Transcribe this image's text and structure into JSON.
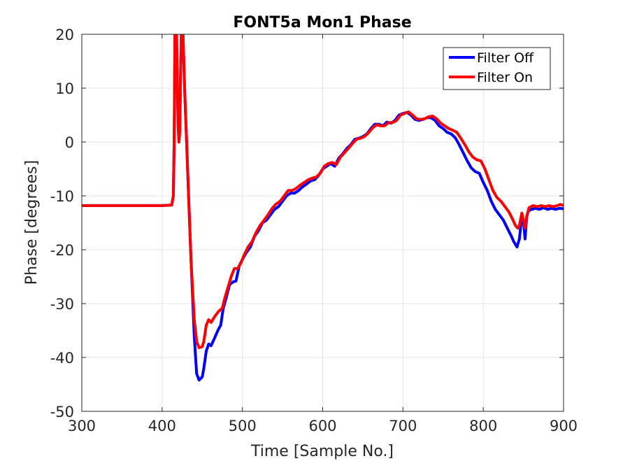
{
  "chart_data": {
    "type": "line",
    "title": "FONT5a Mon1 Phase",
    "xlabel": "Time [Sample No.]",
    "ylabel": "Phase [degrees]",
    "xlim": [
      300,
      900
    ],
    "ylim": [
      -50,
      20
    ],
    "xticks": [
      300,
      400,
      500,
      600,
      700,
      800,
      900
    ],
    "yticks": [
      -50,
      -40,
      -30,
      -20,
      -10,
      0,
      10,
      20
    ],
    "grid": true,
    "legend_position": "top-right",
    "series": [
      {
        "name": "Filter Off",
        "color": "#0000ff",
        "points": [
          [
            300,
            -11.8
          ],
          [
            350,
            -11.8
          ],
          [
            400,
            -11.8
          ],
          [
            412,
            -11.7
          ],
          [
            414,
            -10
          ],
          [
            415,
            0
          ],
          [
            416,
            20
          ],
          [
            417,
            26
          ],
          [
            418,
            20
          ],
          [
            419,
            10
          ],
          [
            420,
            3
          ],
          [
            421,
            0
          ],
          [
            422,
            2
          ],
          [
            423,
            12
          ],
          [
            424,
            20
          ],
          [
            425,
            26
          ],
          [
            426,
            20
          ],
          [
            428,
            10
          ],
          [
            430,
            2
          ],
          [
            433,
            -10
          ],
          [
            436,
            -22
          ],
          [
            440,
            -36
          ],
          [
            443,
            -43
          ],
          [
            446,
            -44.2
          ],
          [
            450,
            -43.6
          ],
          [
            452,
            -42
          ],
          [
            455,
            -38.8
          ],
          [
            458,
            -37.5
          ],
          [
            461,
            -37.8
          ],
          [
            465,
            -36.5
          ],
          [
            470,
            -34.8
          ],
          [
            473,
            -34
          ],
          [
            476,
            -31
          ],
          [
            480,
            -28.8
          ],
          [
            484,
            -26.5
          ],
          [
            488,
            -26
          ],
          [
            492,
            -25.8
          ],
          [
            496,
            -23
          ],
          [
            500,
            -21.8
          ],
          [
            505,
            -20.5
          ],
          [
            510,
            -19.5
          ],
          [
            515,
            -17.5
          ],
          [
            520,
            -16.5
          ],
          [
            525,
            -15
          ],
          [
            530,
            -14.5
          ],
          [
            535,
            -13.5
          ],
          [
            540,
            -12.5
          ],
          [
            545,
            -12
          ],
          [
            550,
            -11
          ],
          [
            555,
            -10
          ],
          [
            560,
            -9.5
          ],
          [
            565,
            -9.5
          ],
          [
            570,
            -9
          ],
          [
            575,
            -8.3
          ],
          [
            580,
            -7.8
          ],
          [
            585,
            -7.2
          ],
          [
            590,
            -7
          ],
          [
            595,
            -6.2
          ],
          [
            600,
            -5
          ],
          [
            605,
            -4.5
          ],
          [
            610,
            -4
          ],
          [
            615,
            -4.5
          ],
          [
            620,
            -3
          ],
          [
            625,
            -2.2
          ],
          [
            630,
            -1.2
          ],
          [
            635,
            -0.5
          ],
          [
            640,
            0.5
          ],
          [
            645,
            0.7
          ],
          [
            650,
            1
          ],
          [
            655,
            1.5
          ],
          [
            660,
            2.5
          ],
          [
            665,
            3.3
          ],
          [
            670,
            3.3
          ],
          [
            675,
            3
          ],
          [
            680,
            3.7
          ],
          [
            685,
            3.5
          ],
          [
            690,
            4
          ],
          [
            695,
            5
          ],
          [
            700,
            5.3
          ],
          [
            705,
            5.5
          ],
          [
            710,
            5
          ],
          [
            715,
            4.2
          ],
          [
            720,
            4
          ],
          [
            725,
            4.2
          ],
          [
            730,
            4.5
          ],
          [
            735,
            4.5
          ],
          [
            740,
            4
          ],
          [
            745,
            3
          ],
          [
            750,
            2.5
          ],
          [
            755,
            1.8
          ],
          [
            760,
            1.5
          ],
          [
            765,
            0.8
          ],
          [
            770,
            -0.5
          ],
          [
            775,
            -2
          ],
          [
            780,
            -3.5
          ],
          [
            785,
            -4.8
          ],
          [
            790,
            -5.5
          ],
          [
            795,
            -5.8
          ],
          [
            800,
            -7.5
          ],
          [
            805,
            -9
          ],
          [
            810,
            -11
          ],
          [
            815,
            -12.5
          ],
          [
            820,
            -13.5
          ],
          [
            825,
            -14.5
          ],
          [
            830,
            -16
          ],
          [
            835,
            -17.5
          ],
          [
            838,
            -18.5
          ],
          [
            842,
            -19.5
          ],
          [
            845,
            -18
          ],
          [
            848,
            -13.8
          ],
          [
            850,
            -14.5
          ],
          [
            852,
            -18
          ],
          [
            854,
            -14
          ],
          [
            856,
            -12.8
          ],
          [
            860,
            -12.5
          ],
          [
            865,
            -12.3
          ],
          [
            870,
            -12.5
          ],
          [
            875,
            -12.2
          ],
          [
            880,
            -12.5
          ],
          [
            885,
            -12.3
          ],
          [
            890,
            -12.5
          ],
          [
            895,
            -12.3
          ],
          [
            900,
            -12.4
          ]
        ]
      },
      {
        "name": "Filter On",
        "color": "#ff0000",
        "points": [
          [
            300,
            -11.8
          ],
          [
            350,
            -11.8
          ],
          [
            400,
            -11.8
          ],
          [
            412,
            -11.7
          ],
          [
            414,
            -10
          ],
          [
            415,
            0
          ],
          [
            416,
            20
          ],
          [
            417,
            26
          ],
          [
            418,
            20
          ],
          [
            419,
            10
          ],
          [
            420,
            3
          ],
          [
            421,
            0
          ],
          [
            422,
            2
          ],
          [
            423,
            12
          ],
          [
            424,
            20
          ],
          [
            425,
            26
          ],
          [
            426,
            20
          ],
          [
            428,
            10
          ],
          [
            430,
            2
          ],
          [
            433,
            -10
          ],
          [
            436,
            -22
          ],
          [
            440,
            -33
          ],
          [
            443,
            -37
          ],
          [
            446,
            -38.2
          ],
          [
            450,
            -38
          ],
          [
            452,
            -37
          ],
          [
            455,
            -34
          ],
          [
            458,
            -33
          ],
          [
            461,
            -33.5
          ],
          [
            465,
            -32.5
          ],
          [
            470,
            -31.5
          ],
          [
            475,
            -30.8
          ],
          [
            478,
            -29
          ],
          [
            482,
            -27
          ],
          [
            486,
            -25
          ],
          [
            490,
            -23.5
          ],
          [
            494,
            -23.5
          ],
          [
            498,
            -22.5
          ],
          [
            502,
            -21
          ],
          [
            507,
            -19.5
          ],
          [
            512,
            -18.5
          ],
          [
            517,
            -16.8
          ],
          [
            522,
            -15.5
          ],
          [
            527,
            -14.5
          ],
          [
            532,
            -13.5
          ],
          [
            537,
            -12.3
          ],
          [
            542,
            -11.5
          ],
          [
            547,
            -11
          ],
          [
            552,
            -10
          ],
          [
            557,
            -9
          ],
          [
            562,
            -9
          ],
          [
            567,
            -8.6
          ],
          [
            572,
            -8
          ],
          [
            577,
            -7.5
          ],
          [
            582,
            -7
          ],
          [
            587,
            -6.7
          ],
          [
            592,
            -6.5
          ],
          [
            597,
            -5.8
          ],
          [
            602,
            -4.5
          ],
          [
            607,
            -4
          ],
          [
            612,
            -3.8
          ],
          [
            617,
            -4.2
          ],
          [
            622,
            -2.8
          ],
          [
            627,
            -2
          ],
          [
            632,
            -1.2
          ],
          [
            637,
            -0.3
          ],
          [
            642,
            0.5
          ],
          [
            647,
            0.7
          ],
          [
            652,
            1
          ],
          [
            657,
            1.7
          ],
          [
            662,
            2.6
          ],
          [
            667,
            3.2
          ],
          [
            672,
            3
          ],
          [
            677,
            3
          ],
          [
            682,
            3.6
          ],
          [
            687,
            3.6
          ],
          [
            692,
            4
          ],
          [
            697,
            5
          ],
          [
            702,
            5.3
          ],
          [
            707,
            5.6
          ],
          [
            712,
            5
          ],
          [
            717,
            4.3
          ],
          [
            722,
            4.2
          ],
          [
            727,
            4.3
          ],
          [
            732,
            4.7
          ],
          [
            737,
            4.8
          ],
          [
            742,
            4.3
          ],
          [
            747,
            3.5
          ],
          [
            752,
            3
          ],
          [
            757,
            2.5
          ],
          [
            762,
            2.2
          ],
          [
            767,
            1.8
          ],
          [
            772,
            0.7
          ],
          [
            777,
            -0.5
          ],
          [
            782,
            -1.8
          ],
          [
            787,
            -2.8
          ],
          [
            792,
            -3.3
          ],
          [
            797,
            -3.5
          ],
          [
            802,
            -5
          ],
          [
            807,
            -7
          ],
          [
            812,
            -9
          ],
          [
            817,
            -10.3
          ],
          [
            822,
            -11
          ],
          [
            827,
            -12
          ],
          [
            832,
            -13
          ],
          [
            837,
            -14.5
          ],
          [
            840,
            -15.5
          ],
          [
            843,
            -16
          ],
          [
            845,
            -15.5
          ],
          [
            848,
            -13.2
          ],
          [
            850,
            -14.5
          ],
          [
            852,
            -16
          ],
          [
            854,
            -13.8
          ],
          [
            857,
            -12.2
          ],
          [
            862,
            -11.8
          ],
          [
            867,
            -12
          ],
          [
            872,
            -11.8
          ],
          [
            877,
            -12
          ],
          [
            882,
            -11.8
          ],
          [
            887,
            -12
          ],
          [
            892,
            -11.8
          ],
          [
            896,
            -11.6
          ],
          [
            900,
            -11.8
          ]
        ]
      }
    ]
  }
}
